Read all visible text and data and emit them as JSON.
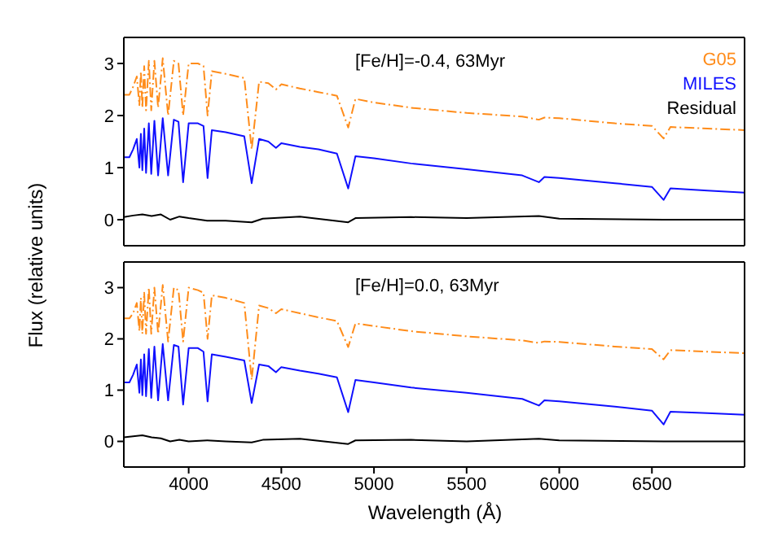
{
  "chart_data": [
    {
      "type": "line",
      "annotations": [
        "[Fe/H]=-0.4, 63Myr"
      ],
      "ylabel": "Flux (relative units)",
      "xlim": [
        3650,
        7000
      ],
      "xticks": [
        4000,
        4500,
        5000,
        5500,
        6000,
        6500
      ],
      "ylim": [
        -0.5,
        3.5
      ],
      "yticks": [
        0,
        1,
        2,
        3
      ],
      "tick_labels": "y",
      "legend": "top right",
      "grid": false,
      "marker": "none",
      "series": [
        {
          "name": "G05",
          "color": "#ff8c1a",
          "line_style": "dashed",
          "x": [
            3650,
            3680,
            3700,
            3720,
            3734,
            3742,
            3750,
            3760,
            3770,
            3785,
            3798,
            3815,
            3835,
            3860,
            3889,
            3920,
            3945,
            3970,
            4000,
            4050,
            4080,
            4102,
            4125,
            4200,
            4300,
            4340,
            4380,
            4430,
            4471,
            4500,
            4600,
            4700,
            4800,
            4861,
            4900,
            5000,
            5200,
            5500,
            5800,
            5890,
            5920,
            6000,
            6300,
            6500,
            6563,
            6600,
            6800,
            7000
          ],
          "values": [
            2.4,
            2.4,
            2.55,
            2.75,
            2.2,
            2.85,
            2.15,
            2.95,
            2.1,
            3.05,
            2.1,
            3.05,
            2.15,
            3.1,
            2.0,
            3.05,
            3.0,
            2.0,
            3.0,
            3.0,
            2.95,
            2.0,
            2.85,
            2.8,
            2.72,
            1.35,
            2.65,
            2.62,
            2.5,
            2.6,
            2.52,
            2.45,
            2.38,
            1.77,
            2.32,
            2.25,
            2.15,
            2.05,
            1.98,
            1.92,
            1.96,
            1.95,
            1.85,
            1.8,
            1.56,
            1.78,
            1.75,
            1.72
          ]
        },
        {
          "name": "MILES",
          "color": "#1010ff",
          "line_style": "solid",
          "x": [
            3650,
            3680,
            3700,
            3720,
            3734,
            3742,
            3750,
            3760,
            3770,
            3785,
            3798,
            3815,
            3835,
            3860,
            3889,
            3920,
            3945,
            3970,
            4000,
            4050,
            4080,
            4102,
            4125,
            4200,
            4300,
            4340,
            4380,
            4430,
            4471,
            4500,
            4600,
            4700,
            4800,
            4861,
            4900,
            5000,
            5200,
            5500,
            5800,
            5890,
            5920,
            6000,
            6300,
            6500,
            6563,
            6600,
            6800,
            7000
          ],
          "values": [
            1.2,
            1.2,
            1.35,
            1.55,
            1.0,
            1.65,
            0.95,
            1.75,
            0.9,
            1.85,
            0.88,
            1.9,
            0.85,
            1.95,
            0.85,
            1.92,
            1.88,
            0.72,
            1.85,
            1.85,
            1.8,
            0.8,
            1.72,
            1.68,
            1.6,
            0.7,
            1.55,
            1.5,
            1.38,
            1.47,
            1.4,
            1.35,
            1.27,
            0.6,
            1.22,
            1.18,
            1.08,
            0.97,
            0.85,
            0.72,
            0.82,
            0.8,
            0.7,
            0.63,
            0.38,
            0.6,
            0.56,
            0.52
          ]
        },
        {
          "name": "Residual",
          "color": "#000000",
          "line_style": "solid",
          "x": [
            3650,
            3700,
            3750,
            3800,
            3850,
            3900,
            3950,
            4000,
            4100,
            4200,
            4340,
            4400,
            4600,
            4861,
            4900,
            5200,
            5500,
            5890,
            6000,
            6563,
            6800,
            7000
          ],
          "values": [
            0.05,
            0.08,
            0.1,
            0.07,
            0.1,
            0.0,
            0.06,
            0.03,
            -0.02,
            -0.02,
            -0.05,
            0.02,
            0.06,
            -0.05,
            0.03,
            0.05,
            0.03,
            0.07,
            0.02,
            0.0,
            0.0,
            0.0
          ]
        }
      ]
    },
    {
      "type": "line",
      "annotations": [
        "[Fe/H]=0.0, 63Myr"
      ],
      "xlabel": "Wavelength (Å)",
      "xlim": [
        3650,
        7000
      ],
      "xticks": [
        4000,
        4500,
        5000,
        5500,
        6000,
        6500
      ],
      "ylim": [
        -0.5,
        3.5
      ],
      "yticks": [
        0,
        1,
        2,
        3
      ],
      "grid": false,
      "marker": "none",
      "series": [
        {
          "color": "#ff8c1a",
          "line_style": "dashed",
          "x": [
            3650,
            3680,
            3700,
            3720,
            3734,
            3742,
            3750,
            3760,
            3770,
            3785,
            3798,
            3815,
            3835,
            3860,
            3889,
            3920,
            3945,
            3970,
            4000,
            4050,
            4080,
            4102,
            4125,
            4200,
            4300,
            4340,
            4380,
            4430,
            4471,
            4500,
            4600,
            4700,
            4800,
            4861,
            4900,
            5000,
            5200,
            5500,
            5800,
            5890,
            5920,
            6000,
            6300,
            6500,
            6563,
            6600,
            6800,
            7000
          ],
          "values": [
            2.4,
            2.4,
            2.5,
            2.7,
            2.15,
            2.8,
            2.1,
            2.9,
            2.1,
            3.0,
            2.1,
            3.0,
            2.1,
            3.05,
            1.95,
            3.0,
            2.95,
            1.95,
            3.0,
            2.95,
            2.9,
            2.0,
            2.85,
            2.8,
            2.7,
            1.2,
            2.65,
            2.6,
            2.5,
            2.58,
            2.5,
            2.42,
            2.35,
            1.84,
            2.3,
            2.25,
            2.15,
            2.05,
            1.97,
            1.92,
            1.95,
            1.94,
            1.85,
            1.8,
            1.6,
            1.78,
            1.75,
            1.72
          ]
        },
        {
          "color": "#1010ff",
          "line_style": "solid",
          "x": [
            3650,
            3680,
            3700,
            3720,
            3734,
            3742,
            3750,
            3760,
            3770,
            3785,
            3798,
            3815,
            3835,
            3860,
            3889,
            3920,
            3945,
            3970,
            4000,
            4050,
            4080,
            4102,
            4125,
            4200,
            4300,
            4340,
            4380,
            4430,
            4471,
            4500,
            4600,
            4700,
            4800,
            4861,
            4900,
            5000,
            5200,
            5500,
            5800,
            5890,
            5920,
            6000,
            6300,
            6500,
            6563,
            6600,
            6800,
            7000
          ],
          "values": [
            1.15,
            1.15,
            1.3,
            1.5,
            0.95,
            1.6,
            0.9,
            1.7,
            0.88,
            1.8,
            0.85,
            1.85,
            0.8,
            1.9,
            0.8,
            1.88,
            1.85,
            0.72,
            1.82,
            1.82,
            1.75,
            0.78,
            1.7,
            1.65,
            1.58,
            0.75,
            1.5,
            1.47,
            1.35,
            1.45,
            1.38,
            1.32,
            1.25,
            0.57,
            1.2,
            1.15,
            1.05,
            0.95,
            0.83,
            0.7,
            0.8,
            0.78,
            0.68,
            0.6,
            0.33,
            0.58,
            0.55,
            0.52
          ]
        },
        {
          "color": "#000000",
          "line_style": "solid",
          "x": [
            3650,
            3700,
            3750,
            3800,
            3850,
            3900,
            3950,
            4000,
            4100,
            4200,
            4340,
            4400,
            4600,
            4861,
            4900,
            5200,
            5500,
            5890,
            6000,
            6563,
            6800,
            7000
          ],
          "values": [
            0.08,
            0.1,
            0.12,
            0.08,
            0.06,
            0.0,
            0.03,
            0.0,
            0.02,
            0.0,
            -0.02,
            0.03,
            0.05,
            -0.05,
            0.02,
            0.03,
            0.0,
            0.05,
            0.02,
            0.0,
            0.0,
            0.0
          ]
        }
      ]
    }
  ]
}
